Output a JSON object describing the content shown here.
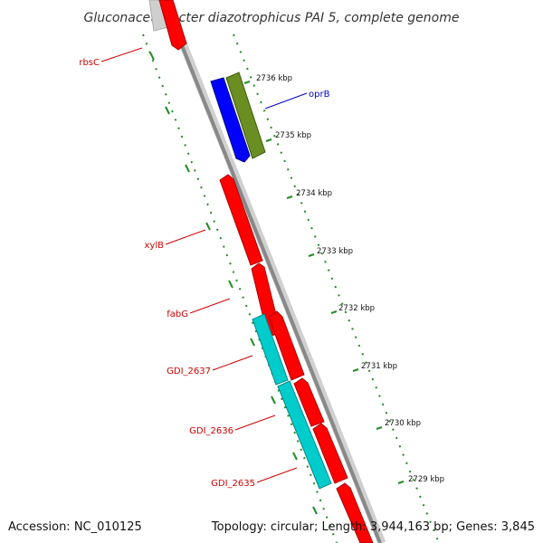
{
  "title": "Gluconacetobacter diazotrophicus PAI 5, complete genome",
  "footer": {
    "accession": "Accession: NC_010125",
    "summary": "Topology: circular; Length: 3,944,163 bp; Genes: 3,845"
  },
  "colors": {
    "backbone": "#888888",
    "forward_gene": "#ff0000",
    "cds_blue": "#0000ff",
    "cds_olive": "#6b8e23",
    "cds_cyan": "#00cccc",
    "ruler": "#228b22",
    "label_red": "#cc0000",
    "label_blue": "#0000cc"
  },
  "ruler_labels": [
    "2736 kbp",
    "2735 kbp",
    "2734 kbp",
    "2733 kbp",
    "2732 kbp",
    "2731 kbp",
    "2730 kbp",
    "2729 kbp"
  ],
  "gene_labels": [
    {
      "name": "rbsC",
      "color": "red"
    },
    {
      "name": "oprB",
      "color": "blue"
    },
    {
      "name": "xylB",
      "color": "red"
    },
    {
      "name": "fabG",
      "color": "red"
    },
    {
      "name": "GDI_2637",
      "color": "red"
    },
    {
      "name": "GDI_2636",
      "color": "red"
    },
    {
      "name": "GDI_2635",
      "color": "red"
    }
  ]
}
